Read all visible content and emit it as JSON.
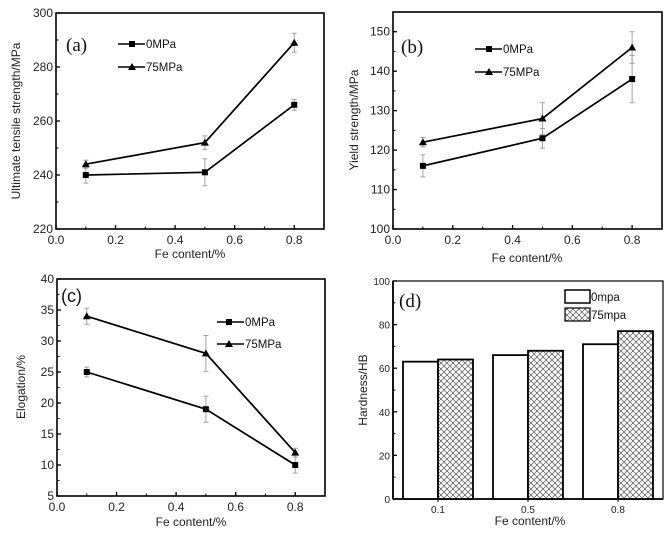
{
  "chart_data": [
    {
      "id": "a",
      "type": "line",
      "panel_label": "(a)",
      "xlabel": "Fe content/%",
      "ylabel": "Ultimate tensile strength/MPa",
      "xlim": [
        0.0,
        0.9
      ],
      "ylim": [
        220,
        300
      ],
      "xticks": [
        0.0,
        0.2,
        0.4,
        0.6,
        0.8
      ],
      "xtick_labels": [
        "0.0",
        "0.2",
        "0.4",
        "0.6",
        "0.8"
      ],
      "yticks": [
        220,
        240,
        260,
        280,
        300
      ],
      "ytick_labels": [
        "220",
        "240",
        "260",
        "280",
        "300"
      ],
      "grid": false,
      "legend_position": "top-left",
      "x": [
        0.1,
        0.5,
        0.8
      ],
      "series": [
        {
          "name": "0MPa",
          "marker": "square",
          "values": [
            240,
            241,
            266
          ],
          "errors": [
            3,
            5,
            2
          ]
        },
        {
          "name": "75MPa",
          "marker": "triangle",
          "values": [
            244,
            252,
            289
          ],
          "errors": [
            1.5,
            2.5,
            3.5
          ]
        }
      ]
    },
    {
      "id": "b",
      "type": "line",
      "panel_label": "(b)",
      "xlabel": "Fe content/%",
      "ylabel": "Yield strength/MPa",
      "xlim": [
        0.0,
        0.9
      ],
      "ylim": [
        100,
        155
      ],
      "xticks": [
        0.0,
        0.2,
        0.4,
        0.6,
        0.8
      ],
      "xtick_labels": [
        "0.0",
        "0.2",
        "0.4",
        "0.6",
        "0.8"
      ],
      "yticks": [
        100,
        110,
        120,
        130,
        140,
        150
      ],
      "ytick_labels": [
        "100",
        "110",
        "120",
        "130",
        "140",
        "150"
      ],
      "grid": false,
      "legend_position": "top-left",
      "x": [
        0.1,
        0.5,
        0.8
      ],
      "series": [
        {
          "name": "0MPa",
          "marker": "square",
          "values": [
            116,
            123,
            138
          ],
          "errors": [
            2.8,
            2.5,
            6
          ]
        },
        {
          "name": "75MPa",
          "marker": "triangle",
          "values": [
            122,
            128,
            146
          ],
          "errors": [
            1.2,
            4,
            4
          ]
        }
      ]
    },
    {
      "id": "c",
      "type": "line",
      "panel_label": "(c)",
      "xlabel": "Fe content/%",
      "ylabel": "Elogation/%",
      "xlim": [
        0.0,
        0.9
      ],
      "ylim": [
        5,
        40
      ],
      "xticks": [
        0.0,
        0.2,
        0.4,
        0.6,
        0.8
      ],
      "xtick_labels": [
        "0.0",
        "0.2",
        "0.4",
        "0.6",
        "0.8"
      ],
      "yticks": [
        5,
        10,
        15,
        20,
        25,
        30,
        35,
        40
      ],
      "ytick_labels": [
        "5",
        "10",
        "15",
        "20",
        "25",
        "30",
        "35",
        "40"
      ],
      "grid": false,
      "legend_position": "top-right",
      "x": [
        0.1,
        0.5,
        0.8
      ],
      "series": [
        {
          "name": "0MPa",
          "marker": "square",
          "values": [
            25,
            19,
            10
          ],
          "errors": [
            0.8,
            2.1,
            1.3
          ]
        },
        {
          "name": "75MPa",
          "marker": "triangle",
          "values": [
            34,
            28,
            12
          ],
          "errors": [
            1.3,
            2.9,
            0.7
          ]
        }
      ]
    },
    {
      "id": "d",
      "type": "bar",
      "panel_label": "(d)",
      "xlabel": "Fe content/%",
      "ylabel": "Hardness/HB",
      "categories": [
        "0.1",
        "0.5",
        "0.8"
      ],
      "ylim": [
        0,
        100
      ],
      "yticks": [
        0,
        20,
        40,
        60,
        80,
        100
      ],
      "ytick_labels": [
        "0",
        "20",
        "40",
        "60",
        "80",
        "100"
      ],
      "grid": false,
      "legend_position": "top-right",
      "series": [
        {
          "name": "0mpa",
          "pattern": "none",
          "values": [
            63,
            66,
            71
          ]
        },
        {
          "name": "75mpa",
          "pattern": "crosshatch",
          "values": [
            64,
            68,
            77
          ]
        }
      ]
    }
  ]
}
